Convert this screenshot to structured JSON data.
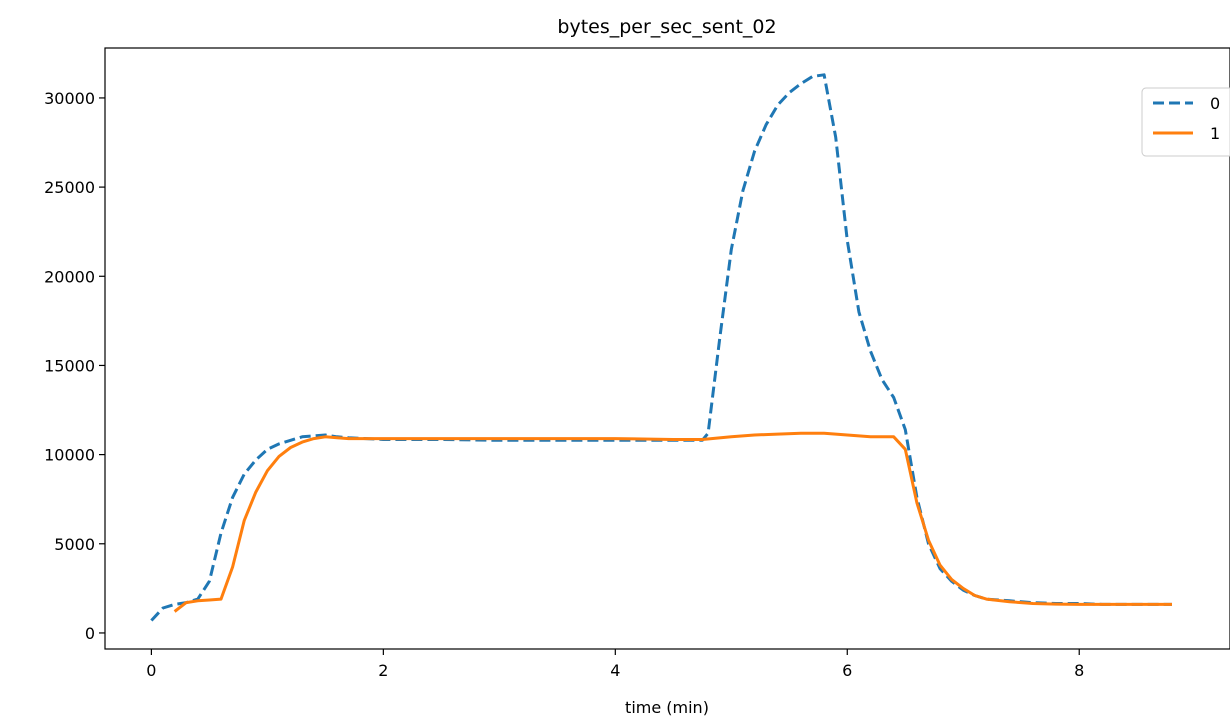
{
  "chart_data": {
    "type": "line",
    "title": "bytes_per_sec_sent_02",
    "xlabel": "time (min)",
    "ylabel": "",
    "xlim": [
      -0.4,
      9.3
    ],
    "ylim": [
      -900,
      32800
    ],
    "xticks": [
      0,
      2,
      4,
      6,
      8
    ],
    "yticks": [
      0,
      5000,
      10000,
      15000,
      20000,
      25000,
      30000
    ],
    "xtick_labels": [
      "0",
      "2",
      "4",
      "6",
      "8"
    ],
    "ytick_labels": [
      "0",
      "5000",
      "10000",
      "15000",
      "20000",
      "25000",
      "30000"
    ],
    "grid": false,
    "legend_position": "top-right",
    "series": [
      {
        "name": "0",
        "color": "#1f77b4",
        "style": "dashed",
        "x": [
          0.0,
          0.1,
          0.2,
          0.3,
          0.4,
          0.5,
          0.6,
          0.7,
          0.8,
          0.9,
          1.0,
          1.1,
          1.2,
          1.3,
          1.4,
          1.5,
          1.6,
          1.7,
          2.0,
          2.5,
          3.0,
          3.5,
          4.0,
          4.5,
          4.75,
          4.8,
          4.9,
          5.0,
          5.1,
          5.2,
          5.3,
          5.4,
          5.5,
          5.6,
          5.7,
          5.8,
          5.9,
          6.0,
          6.1,
          6.2,
          6.3,
          6.4,
          6.5,
          6.6,
          6.7,
          6.8,
          6.9,
          7.0,
          7.1,
          7.2,
          7.4,
          7.6,
          7.8,
          8.0,
          8.2,
          8.4,
          8.6,
          8.8
        ],
        "y": [
          700,
          1400,
          1600,
          1700,
          1900,
          2900,
          5600,
          7600,
          8900,
          9700,
          10300,
          10600,
          10800,
          11000,
          11050,
          11100,
          11000,
          10950,
          10850,
          10850,
          10800,
          10800,
          10800,
          10800,
          10800,
          11200,
          16500,
          21500,
          24800,
          27000,
          28500,
          29600,
          30300,
          30800,
          31200,
          31300,
          27800,
          22000,
          18000,
          15800,
          14200,
          13200,
          11400,
          7600,
          5000,
          3600,
          2900,
          2400,
          2100,
          1900,
          1800,
          1700,
          1650,
          1650,
          1600,
          1600,
          1600,
          1600
        ]
      },
      {
        "name": "1",
        "color": "#ff7f0e",
        "style": "solid",
        "x": [
          0.2,
          0.3,
          0.4,
          0.5,
          0.6,
          0.7,
          0.8,
          0.9,
          1.0,
          1.1,
          1.2,
          1.3,
          1.4,
          1.5,
          1.6,
          1.7,
          2.0,
          2.5,
          3.0,
          3.5,
          4.0,
          4.5,
          4.75,
          5.0,
          5.2,
          5.4,
          5.6,
          5.8,
          6.0,
          6.2,
          6.4,
          6.5,
          6.6,
          6.7,
          6.8,
          6.9,
          7.0,
          7.1,
          7.2,
          7.4,
          7.6,
          7.8,
          8.0,
          8.2,
          8.4,
          8.6,
          8.8
        ],
        "y": [
          1200,
          1700,
          1800,
          1850,
          1900,
          3700,
          6300,
          7900,
          9100,
          9900,
          10400,
          10700,
          10900,
          11000,
          10950,
          10900,
          10900,
          10900,
          10900,
          10900,
          10900,
          10850,
          10850,
          11000,
          11100,
          11150,
          11200,
          11200,
          11100,
          11000,
          11000,
          10300,
          7300,
          5200,
          3800,
          3000,
          2500,
          2100,
          1900,
          1750,
          1650,
          1620,
          1600,
          1600,
          1600,
          1600,
          1600
        ]
      }
    ]
  }
}
